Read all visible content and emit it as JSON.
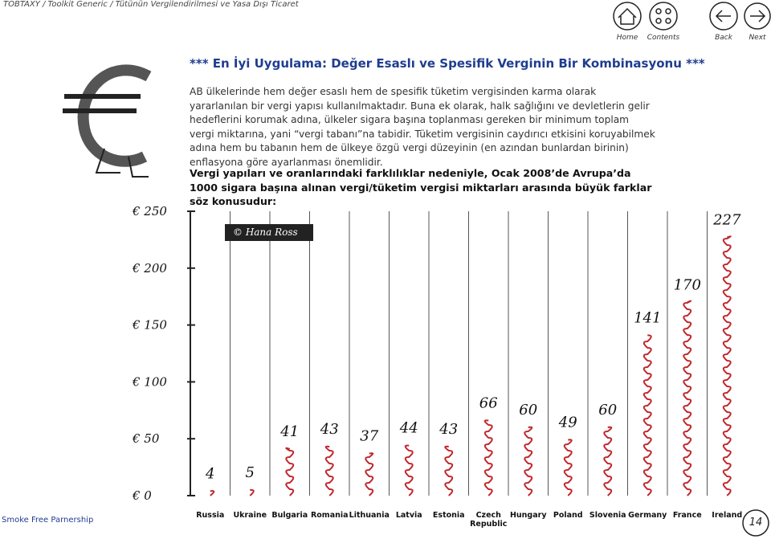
{
  "header": {
    "breadcrumb": "TOBTAXY / Toolkit Generic / Tütünün Vergilendirilmesi ve Yasa Dışı Ticaret",
    "nav": [
      "Home",
      "Contents",
      "Back",
      "Next"
    ]
  },
  "title": "*** En İyi Uygulama: Değer Esaslı ve Spesifik Verginin Bir Kombinasyonu ***",
  "paragraphs": [
    "AB ülkelerinde hem değer esaslı hem de spesifik tüketim vergisinden karma olarak yararlanılan bir vergi yapısı kullanılmaktadır. Buna ek olarak, halk sağlığını ve devletlerin gelir hedeflerini korumak adına, ülkeler sigara başına toplanması gereken bir minimum toplam vergi miktarına, yani “vergi tabanı”na tabidir. Tüketim vergisinin caydırıcı etkisini koruyabilmek adına hem bu tabanın hem de ülkeye özgü vergi düzeyinin (en azından bunlardan birinin) enflasyona göre ayarlanması önemlidir.",
    "Vergi yapıları ve oranlarındaki farklılıklar nedeniyle, Ocak 2008’de Avrupa’da 1000 sigara başına alınan vergi/tüketim vergisi miktarları arasında büyük farklar söz konusudur:"
  ],
  "chart_data": {
    "type": "bar",
    "annotation": "© Hana Ross",
    "categories": [
      "Russia",
      "Ukraine",
      "Bulgaria",
      "Romania",
      "Lithuania",
      "Latvia",
      "Estonia",
      "Czech Republic",
      "Hungary",
      "Poland",
      "Slovenia",
      "Germany",
      "France",
      "Ireland"
    ],
    "values": [
      4,
      5,
      41,
      43,
      37,
      44,
      43,
      66,
      60,
      49,
      60,
      141,
      170,
      227
    ],
    "color": "#c0272d",
    "ylim": [
      0,
      250
    ],
    "yticks": [
      {
        "value": 0,
        "label": "€ 0"
      },
      {
        "value": 50,
        "label": "€ 50"
      },
      {
        "value": 100,
        "label": "€ 100"
      },
      {
        "value": 150,
        "label": "€ 150"
      },
      {
        "value": 200,
        "label": "€ 200"
      },
      {
        "value": 250,
        "label": "€ 250"
      }
    ]
  },
  "footer": {
    "organization": "Smoke Free Parnership",
    "page": "14"
  }
}
